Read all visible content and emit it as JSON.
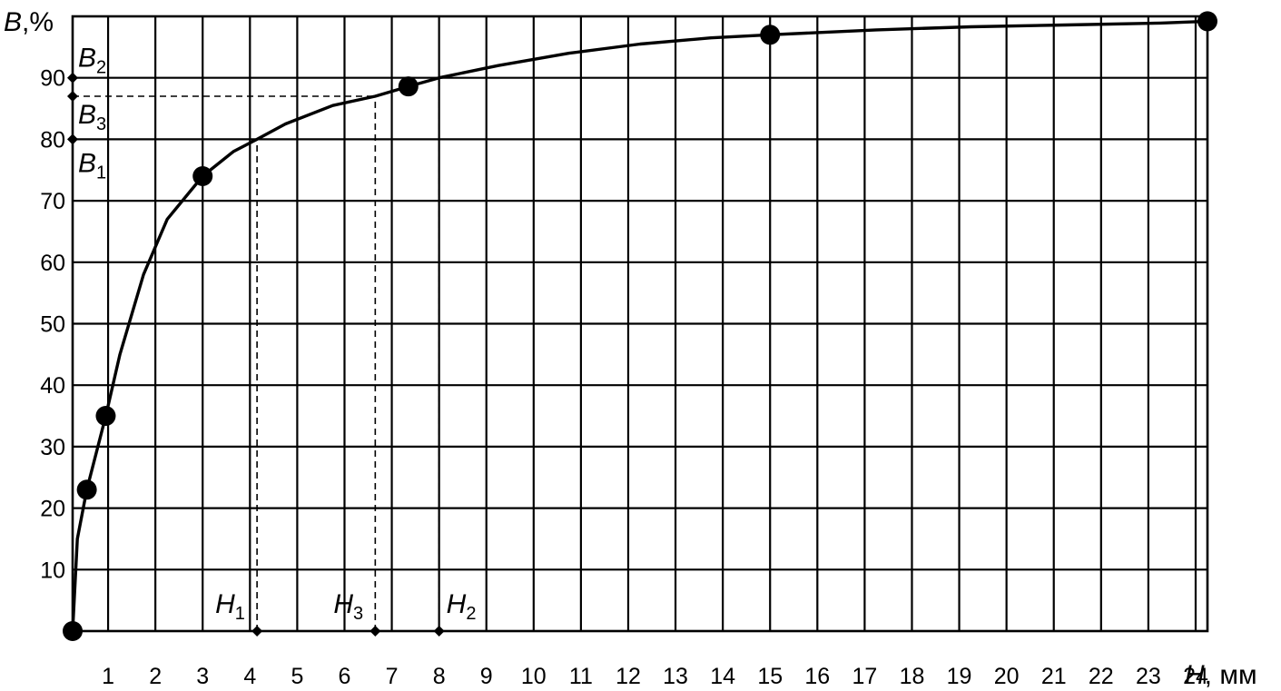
{
  "chart_data": {
    "type": "line",
    "x_axis": {
      "unit_label": "мм",
      "var": "H",
      "range": [
        0,
        24
      ],
      "ticks": [
        "1",
        "2",
        "3",
        "4",
        "5",
        "6",
        "7",
        "8",
        "9",
        "10",
        "11",
        "12",
        "13",
        "14",
        "15",
        "16",
        "17",
        "18",
        "19",
        "20",
        "21",
        "22",
        "23",
        "24"
      ],
      "tick_positions": [
        0.75,
        1.75,
        2.75,
        3.75,
        4.75,
        5.75,
        6.75,
        7.75,
        8.75,
        9.75,
        10.75,
        11.75,
        12.75,
        13.75,
        14.75,
        15.75,
        16.75,
        17.75,
        18.75,
        19.75,
        20.75,
        21.75,
        22.75,
        23.75
      ]
    },
    "y_axis": {
      "var": "B",
      "unit_label": ",%",
      "range": [
        0,
        100
      ],
      "ticks": [
        "10",
        "20",
        "30",
        "40",
        "50",
        "60",
        "70",
        "80",
        "90"
      ],
      "tick_values": [
        10,
        20,
        30,
        40,
        50,
        60,
        70,
        80,
        90
      ]
    },
    "grid": true,
    "series": [
      {
        "curve": [
          [
            0,
            0
          ],
          [
            0.1,
            15
          ],
          [
            0.3,
            23
          ],
          [
            0.7,
            35
          ],
          [
            1.0,
            45
          ],
          [
            1.5,
            58
          ],
          [
            2.0,
            67
          ],
          [
            2.75,
            74
          ],
          [
            3.4,
            78
          ],
          [
            3.9,
            80
          ],
          [
            4.5,
            82.5
          ],
          [
            5.5,
            85.5
          ],
          [
            6.4,
            87
          ],
          [
            7.1,
            88.6
          ],
          [
            7.75,
            90
          ],
          [
            9,
            92
          ],
          [
            10.5,
            94
          ],
          [
            12,
            95.5
          ],
          [
            13.5,
            96.5
          ],
          [
            14.75,
            97
          ],
          [
            17,
            97.8
          ],
          [
            19,
            98.3
          ],
          [
            21,
            98.6
          ],
          [
            23,
            98.9
          ],
          [
            24,
            99.2
          ]
        ],
        "markers": [
          [
            0,
            0
          ],
          [
            0.3,
            23
          ],
          [
            0.7,
            35
          ],
          [
            2.75,
            74
          ],
          [
            7.1,
            88.6
          ],
          [
            14.75,
            97
          ],
          [
            24,
            99.2
          ]
        ]
      }
    ],
    "annotations": [
      {
        "axis": "y",
        "label": "B",
        "sub": "2",
        "value": 90
      },
      {
        "axis": "y",
        "label": "B",
        "sub": "3",
        "value": 87
      },
      {
        "axis": "y",
        "label": "B",
        "sub": "1",
        "value": 80
      },
      {
        "axis": "x",
        "label": "H",
        "sub": "1",
        "value": 3.9
      },
      {
        "axis": "x",
        "label": "H",
        "sub": "3",
        "value": 6.4
      },
      {
        "axis": "x",
        "label": "H",
        "sub": "2",
        "value": 7.75
      }
    ]
  }
}
